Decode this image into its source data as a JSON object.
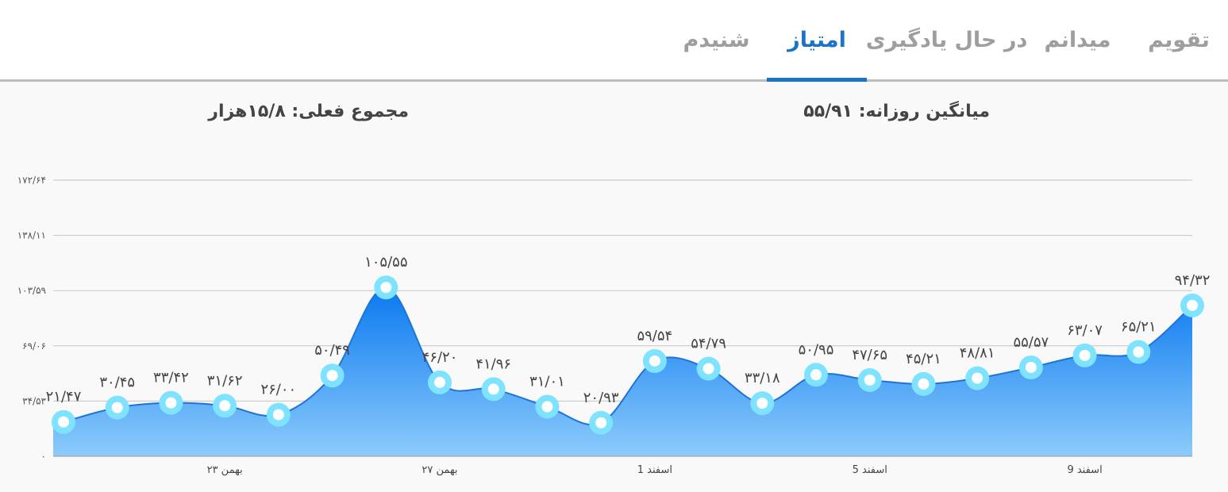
{
  "tabs": [
    {
      "label": "تقویم",
      "active": false
    },
    {
      "label": "میدانم",
      "active": false
    },
    {
      "label": "در حال یادگیری",
      "active": false
    },
    {
      "label": "امتیاز",
      "active": true
    },
    {
      "label": "شنیدم",
      "active": false
    }
  ],
  "stats": {
    "daily_average": "میانگین روزانه: ۵۵/۹۱",
    "current_total": "مجموع فعلی: ۱۵/۸هزار"
  },
  "colors": {
    "accent": "#1a73c8",
    "area_top": "#0a79f0",
    "area_bottom": "#8ccbfb",
    "marker_ring": "#7fe3ff"
  },
  "chart_data": {
    "type": "area",
    "title": "",
    "xlabel": "",
    "ylabel": "",
    "ylim": [
      0,
      172.64
    ],
    "y_ticks": [
      0,
      34.53,
      69.06,
      103.59,
      138.11,
      172.64
    ],
    "y_tick_labels": [
      "۰",
      "۳۴/۵۳",
      "۶۹/۰۶",
      "۱۰۳/۵۹",
      "۱۳۸/۱۱",
      "۱۷۲/۶۴"
    ],
    "grid": true,
    "x_tick_labels": [
      {
        "index": 3,
        "label": "۲۳ بهمن"
      },
      {
        "index": 7,
        "label": "۲۷ بهمن"
      },
      {
        "index": 11,
        "label": "1 اسفند"
      },
      {
        "index": 15,
        "label": "5 اسفند"
      },
      {
        "index": 19,
        "label": "9 اسفند"
      }
    ],
    "values": [
      21.47,
      30.45,
      33.42,
      31.62,
      26.0,
      50.49,
      105.55,
      46.2,
      41.96,
      31.01,
      20.93,
      59.54,
      54.79,
      33.18,
      50.95,
      47.65,
      45.21,
      48.81,
      55.57,
      63.07,
      65.21,
      94.32
    ],
    "labels": [
      "۲۱/۴۷",
      "۳۰/۴۵",
      "۳۳/۴۲",
      "۳۱/۶۲",
      "۲۶/۰۰",
      "۵۰/۴۹",
      "۱۰۵/۵۵",
      "۴۶/۲۰",
      "۴۱/۹۶",
      "۳۱/۰۱",
      "۲۰/۹۳",
      "۵۹/۵۴",
      "۵۴/۷۹",
      "۳۳/۱۸",
      "۵۰/۹۵",
      "۴۷/۶۵",
      "۴۵/۲۱",
      "۴۸/۸۱",
      "۵۵/۵۷",
      "۶۳/۰۷",
      "۶۵/۲۱",
      "۹۴/۳۲"
    ]
  }
}
